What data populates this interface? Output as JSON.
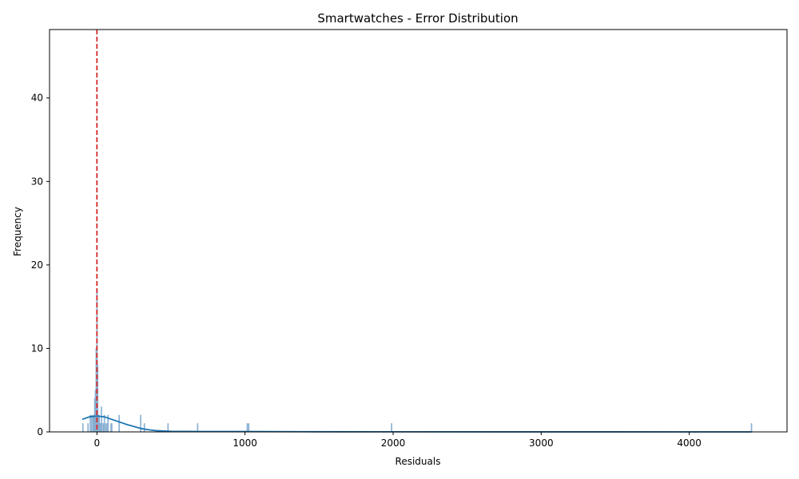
{
  "chart_data": {
    "type": "histogram",
    "title": "Smartwatches - Error Distribution",
    "xlabel": "Residuals",
    "ylabel": "Frequency",
    "xlim": [
      -320,
      4660
    ],
    "ylim": [
      0,
      48.2
    ],
    "x_ticks": [
      0,
      1000,
      2000,
      3000,
      4000
    ],
    "y_ticks": [
      0,
      10,
      20,
      30,
      40
    ],
    "grid": false,
    "colors": {
      "bar_fill": "#a6c4df",
      "bar_edge": "#7aa6cc",
      "kde_line": "#1f77b4",
      "mean_line": "#d62728",
      "axes": "#000000"
    },
    "bin_width": 5,
    "bins": [
      {
        "x": -95,
        "count": 1
      },
      {
        "x": -60,
        "count": 1
      },
      {
        "x": -45,
        "count": 2
      },
      {
        "x": -35,
        "count": 2
      },
      {
        "x": -25,
        "count": 2
      },
      {
        "x": -20,
        "count": 2
      },
      {
        "x": -15,
        "count": 4
      },
      {
        "x": -10,
        "count": 5
      },
      {
        "x": -5,
        "count": 10
      },
      {
        "x": 0,
        "count": 17
      },
      {
        "x": 5,
        "count": 8
      },
      {
        "x": 10,
        "count": 2
      },
      {
        "x": 15,
        "count": 2
      },
      {
        "x": 20,
        "count": 1
      },
      {
        "x": 25,
        "count": 1
      },
      {
        "x": 30,
        "count": 3
      },
      {
        "x": 35,
        "count": 1
      },
      {
        "x": 45,
        "count": 1
      },
      {
        "x": 50,
        "count": 2
      },
      {
        "x": 60,
        "count": 1
      },
      {
        "x": 70,
        "count": 1
      },
      {
        "x": 75,
        "count": 2
      },
      {
        "x": 95,
        "count": 1
      },
      {
        "x": 100,
        "count": 1
      },
      {
        "x": 150,
        "count": 2
      },
      {
        "x": 295,
        "count": 2
      },
      {
        "x": 320,
        "count": 1
      },
      {
        "x": 480,
        "count": 1
      },
      {
        "x": 680,
        "count": 1
      },
      {
        "x": 1015,
        "count": 1
      },
      {
        "x": 1025,
        "count": 1
      },
      {
        "x": 1990,
        "count": 1
      },
      {
        "x": 4420,
        "count": 1
      }
    ],
    "kde": {
      "x": [
        -100,
        -50,
        0,
        50,
        100,
        150,
        200,
        250,
        300,
        350,
        400,
        500,
        700,
        1000,
        1500,
        2000,
        3000,
        4000,
        4420
      ],
      "y": [
        1.5,
        1.8,
        1.9,
        1.8,
        1.5,
        1.2,
        0.9,
        0.65,
        0.4,
        0.25,
        0.15,
        0.07,
        0.05,
        0.04,
        0.02,
        0.01,
        0.005,
        0.003,
        0.002
      ]
    },
    "mean_line_x": 0
  }
}
